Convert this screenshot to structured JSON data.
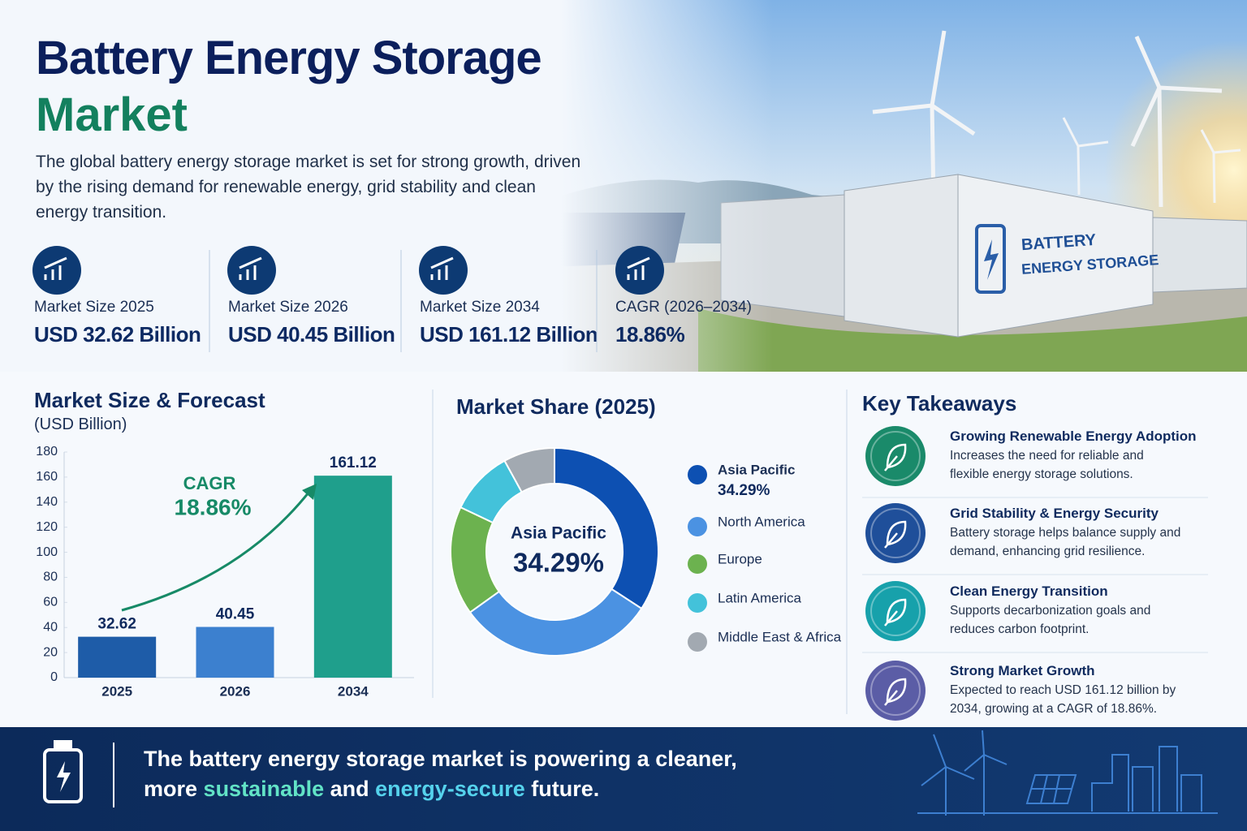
{
  "header": {
    "title": "Battery Energy Storage",
    "title_highlight": "Market",
    "description": "The global battery energy storage market is set for strong growth, driven by the rising demand for renewable energy, grid stability and clean energy transition."
  },
  "image_sign": [
    "BATTERY",
    "ENERGY STORAGE"
  ],
  "stats": [
    {
      "label": "Market Size 2025",
      "value": "USD 32.62 Billion"
    },
    {
      "label": "Market Size 2026",
      "value": "USD 40.45 Billion"
    },
    {
      "label": "Market Size 2034",
      "value": "USD 161.12 Billion"
    },
    {
      "label": "CAGR (2026–2034)",
      "value": "18.86%"
    }
  ],
  "chart_data": [
    {
      "type": "bar",
      "title": "Market Size & Forecast",
      "subtitle": "(USD Billion)",
      "categories": [
        "2025",
        "2026",
        "2034"
      ],
      "values": [
        32.62,
        40.45,
        161.12
      ],
      "colors": [
        "#1e5ca8",
        "#3c80cf",
        "#1f9f8c"
      ],
      "ylim": [
        0,
        180
      ],
      "yticks": [
        0,
        20,
        40,
        60,
        80,
        100,
        120,
        140,
        160,
        180
      ],
      "annotations": [
        "CAGR",
        "18.86%"
      ],
      "grid": false
    },
    {
      "type": "donut",
      "title": "Market Share (2025)",
      "categories": [
        "Asia Pacific",
        "North America",
        "Europe",
        "Latin America",
        "Middle East & Africa"
      ],
      "values": [
        34.29,
        31,
        17,
        10,
        8
      ],
      "value_labels": [
        "34.29%",
        null,
        null,
        null,
        null
      ],
      "colors": [
        "#0d50b2",
        "#4b92e2",
        "#6cb24f",
        "#43c2da",
        "#a2a9b1"
      ]
    }
  ],
  "takeaways_title": "Key Takeaways",
  "takeaways": [
    {
      "title": "Growing Renewable Energy Adoption",
      "text": "Increases the need for reliable and flexible energy storage solutions."
    },
    {
      "title": "Grid Stability & Energy Security",
      "text": "Battery storage helps balance supply and demand, enhancing grid resilience."
    },
    {
      "title": "Clean Energy Transition",
      "text": "Supports decarbonization goals and reduces carbon footprint."
    },
    {
      "title": "Strong Market Growth",
      "text": "Expected to reach USD 161.12 billion by 2034, growing at a CAGR of 18.86%."
    }
  ],
  "footer": {
    "line1": "The battery energy storage market is powering a cleaner,",
    "line2": [
      "more",
      "sustainable",
      "and",
      "energy-secure",
      "future."
    ]
  }
}
